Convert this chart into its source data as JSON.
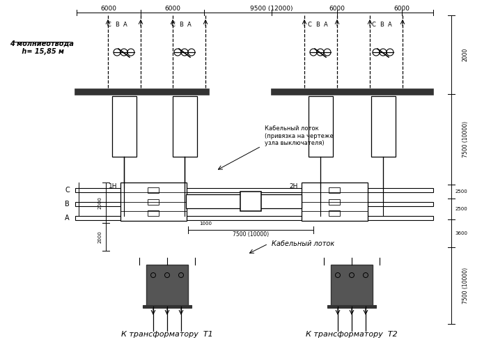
{
  "title": "",
  "bg_color": "#ffffff",
  "line_color": "#000000",
  "fig_width": 7.05,
  "fig_height": 5.01,
  "dpi": 100,
  "annotations": {
    "lightning_rods": "4 молниеотвода\n h= 15,85 м",
    "cable_tray_upper": "Кабельный лоток\n(привязка на чертеже\nузла выключателя)",
    "cable_tray_lower": "Кабельный лоток",
    "transformer1": "К трансформатору  Т1",
    "transformer2": "К трансформатору  Т2",
    "dim_top_1": "6000",
    "dim_top_2": "6000",
    "dim_top_3": "9500 (12000)",
    "dim_top_4": "6000",
    "dim_top_5": "6000",
    "dim_right_1": "2000",
    "dim_right_2": "7500 (10000)",
    "dim_right_3": "2500",
    "dim_right_4": "2500",
    "dim_right_5": "3600",
    "dim_right_6": "7500 (10000)",
    "dim_mid_1": "2000",
    "dim_mid_2": "2000",
    "dim_mid_3": "7500 (10000)",
    "label_1H": "1Н",
    "label_2H": "2Н",
    "label_C": "C",
    "label_B": "B",
    "label_A": "A"
  }
}
